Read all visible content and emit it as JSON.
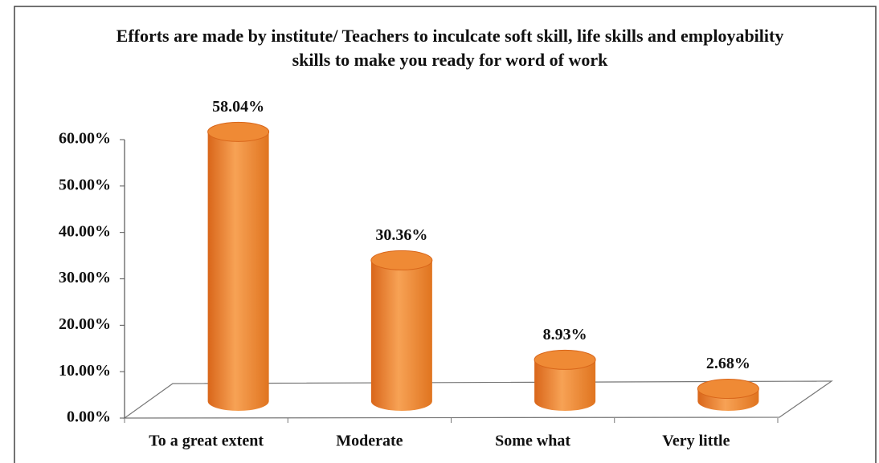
{
  "chart_data": {
    "type": "bar",
    "title": "Efforts are made by institute/ Teachers to inculcate soft skill, life skills and employability skills to make you ready for word of work",
    "categories": [
      "To a great extent",
      "Moderate",
      "Some what",
      "Very little"
    ],
    "values": [
      58.04,
      30.36,
      8.93,
      2.68
    ],
    "value_labels": [
      "58.04%",
      "30.36%",
      "8.93%",
      "2.68%"
    ],
    "color": "#ef8a35",
    "ylim": [
      0,
      60
    ],
    "yticks": [
      {
        "value": 0,
        "label": "0.00%"
      },
      {
        "value": 10,
        "label": "10.00%"
      },
      {
        "value": 20,
        "label": "20.00%"
      },
      {
        "value": 30,
        "label": "30.00%"
      },
      {
        "value": 40,
        "label": "40.00%"
      },
      {
        "value": 50,
        "label": "50.00%"
      },
      {
        "value": 60,
        "label": "60.00%"
      }
    ]
  }
}
